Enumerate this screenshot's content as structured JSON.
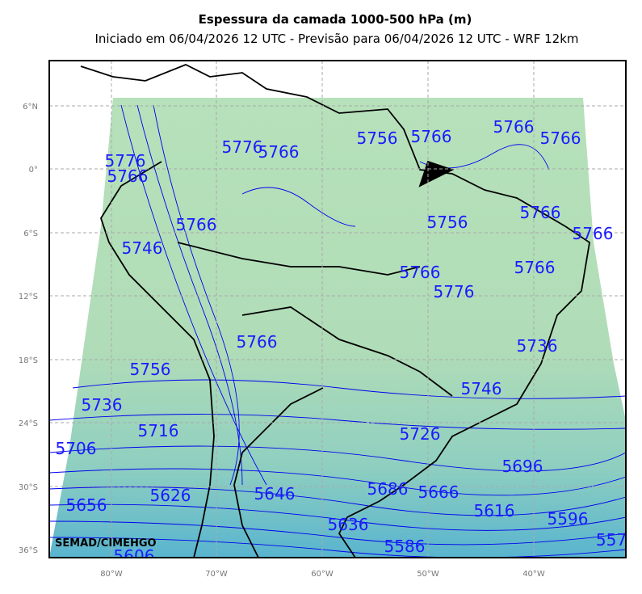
{
  "map": {
    "title": "Espessura da camada 1000-500 hPa (m)",
    "subtitle": "Iniciado em 06/04/2026 12 UTC - Previsão para 06/04/2026 12 UTC - WRF 12km",
    "lat_labels": [
      "6°N",
      "0°",
      "6°S",
      "12°S",
      "18°S",
      "24°S",
      "30°S",
      "36°S"
    ],
    "lon_labels": [
      "80°W",
      "70°W",
      "60°W",
      "50°W",
      "40°W"
    ],
    "watermark": "SEMAD/CIMEHGO",
    "contour_labels": [
      "5776",
      "5766",
      "5776",
      "5766",
      "5756",
      "5766",
      "5766",
      "5766",
      "5766",
      "5756",
      "5766",
      "5766",
      "5746",
      "5766",
      "5776",
      "5766",
      "5766",
      "5756",
      "5736",
      "5736",
      "5746",
      "5716",
      "5726",
      "5706",
      "5696",
      "5626",
      "5656",
      "5646",
      "5686",
      "5666",
      "5616",
      "5596",
      "5636",
      "5586",
      "5606",
      "557"
    ]
  }
}
